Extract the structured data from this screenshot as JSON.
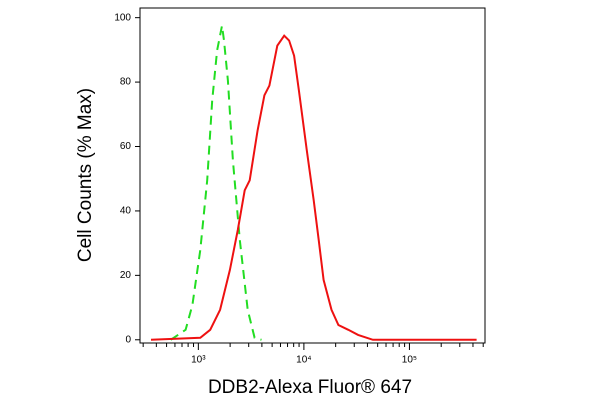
{
  "chart_data": {
    "type": "line",
    "xlabel": "DDB2-Alexa Fluor® 647",
    "ylabel": "Cell Counts (% Max)",
    "xscale": "log",
    "xlim": [
      280,
      520000
    ],
    "ylim": [
      -1,
      103
    ],
    "xticks": [
      {
        "value": 1000,
        "label": "10³"
      },
      {
        "value": 10000,
        "label": "10⁴"
      },
      {
        "value": 100000,
        "label": "10⁵"
      }
    ],
    "xminorticks": [
      300,
      400,
      500,
      600,
      700,
      800,
      900,
      2000,
      3000,
      4000,
      5000,
      6000,
      7000,
      8000,
      9000,
      20000,
      30000,
      40000,
      50000,
      60000,
      70000,
      80000,
      90000,
      200000,
      300000,
      400000,
      500000
    ],
    "yticks": [
      0,
      20,
      40,
      60,
      80,
      100
    ],
    "series": [
      {
        "color": "#22dd22",
        "linestyle": "dashed",
        "x": [
          547,
          757,
          879,
          1044,
          1214,
          1352,
          1506,
          1675,
          1750,
          1907,
          2124,
          2469,
          2933,
          3410,
          3963
        ],
        "values": [
          0,
          3.1,
          10.8,
          27.9,
          49.5,
          74.3,
          89.8,
          97.5,
          92.9,
          80.5,
          55.7,
          31,
          9.3,
          0.6,
          0
        ]
      },
      {
        "color": "#ee1111",
        "linestyle": "solid",
        "x": [
          356,
          1044,
          1295,
          1606,
          1991,
          2366,
          2750,
          3063,
          3639,
          4227,
          4710,
          5594,
          6503,
          7244,
          8072,
          8977,
          10660,
          12390,
          13800,
          15380,
          18280,
          21230,
          26360,
          32660,
          45080,
          432500
        ],
        "values": [
          0,
          0.6,
          3.1,
          9.3,
          21.7,
          34.1,
          46.4,
          49.5,
          65,
          75.9,
          78.9,
          91.3,
          94.4,
          92.9,
          88.2,
          77.4,
          58.8,
          43.3,
          31,
          18.6,
          9.3,
          4.6,
          3.1,
          1.5,
          0,
          0
        ]
      }
    ]
  }
}
